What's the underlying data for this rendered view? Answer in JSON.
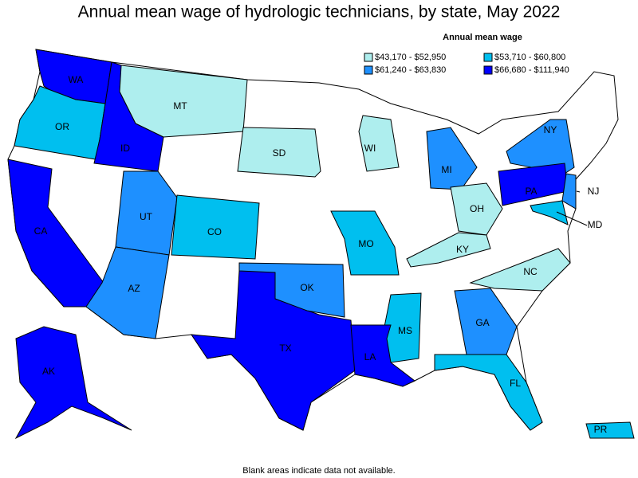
{
  "title": "Annual mean wage of hydrologic technicians, by state, May 2022",
  "legend": {
    "title": "Annual mean wage",
    "items": [
      {
        "label": "$43,170 - $52,950",
        "color": "#aeeeee"
      },
      {
        "label": "$53,710 - $60,800",
        "color": "#00bfef"
      },
      {
        "label": "$61,240 - $63,830",
        "color": "#1e90ff"
      },
      {
        "label": "$66,680 - $111,940",
        "color": "#0000ff"
      }
    ]
  },
  "states": [
    {
      "label": "WA",
      "color": "#0000ff"
    },
    {
      "label": "OR",
      "color": "#00bfef"
    },
    {
      "label": "ID",
      "color": "#0000ff"
    },
    {
      "label": "MT",
      "color": "#aeeeee"
    },
    {
      "label": "SD",
      "color": "#aeeeee"
    },
    {
      "label": "WI",
      "color": "#aeeeee"
    },
    {
      "label": "MI",
      "color": "#1e90ff"
    },
    {
      "label": "OH",
      "color": "#aeeeee"
    },
    {
      "label": "KY",
      "color": "#aeeeee"
    },
    {
      "label": "NY",
      "color": "#1e90ff"
    },
    {
      "label": "PA",
      "color": "#0000ff"
    },
    {
      "label": "NJ",
      "color": "#1e90ff"
    },
    {
      "label": "MD",
      "color": "#00bfef"
    },
    {
      "label": "NC",
      "color": "#aeeeee"
    },
    {
      "label": "CA",
      "color": "#0000ff"
    },
    {
      "label": "UT",
      "color": "#1e90ff"
    },
    {
      "label": "CO",
      "color": "#00bfef"
    },
    {
      "label": "AZ",
      "color": "#1e90ff"
    },
    {
      "label": "TX",
      "color": "#0000ff"
    },
    {
      "label": "OK",
      "color": "#1e90ff"
    },
    {
      "label": "MO",
      "color": "#00bfef"
    },
    {
      "label": "MS",
      "color": "#00bfef"
    },
    {
      "label": "LA",
      "color": "#0000ff"
    },
    {
      "label": "GA",
      "color": "#1e90ff"
    },
    {
      "label": "FL",
      "color": "#00bfef"
    },
    {
      "label": "AK",
      "color": "#0000ff"
    },
    {
      "label": "PR",
      "color": "#00bfef"
    }
  ],
  "footnote": "Blank areas indicate data not available."
}
